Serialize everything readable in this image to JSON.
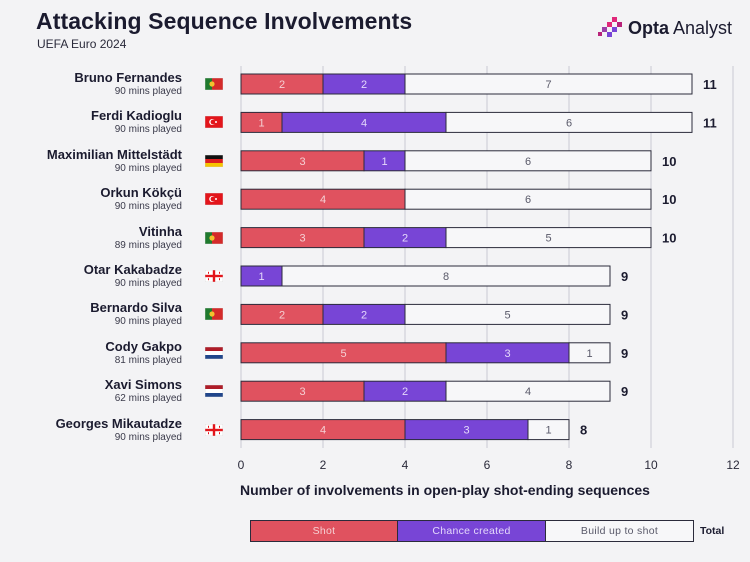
{
  "header": {
    "title": "Attacking Sequence Involvements",
    "subtitle": "UEFA Euro 2024",
    "brand_bold": "Opta",
    "brand_light": "Analyst"
  },
  "colors": {
    "shot": "#e0525f",
    "chance": "#7845d6",
    "buildup": "#f7f7f9",
    "text_on_bar": "#f5d0d4",
    "outline": "#2b2b3b",
    "grid": "#c9c9d2"
  },
  "legend": {
    "shot_label": "Shot",
    "chance_label": "Chance created",
    "buildup_label": "Build up to shot",
    "total_label": "Total"
  },
  "chart_data": {
    "type": "bar",
    "orientation": "horizontal",
    "stacked": true,
    "title": "Attacking Sequence Involvements",
    "xlabel": "Number of involvements in open-play shot-ending sequences",
    "xlim": [
      0,
      12
    ],
    "xticks": [
      0,
      2,
      4,
      6,
      8,
      10,
      12
    ],
    "categories": [
      "Bruno Fernandes",
      "Ferdi Kadioglu",
      "Maximilian Mittelstädt",
      "Orkun Kökçü",
      "Vitinha",
      "Otar Kakabadze",
      "Bernardo Silva",
      "Cody Gakpo",
      "Xavi Simons",
      "Georges Mikautadze"
    ],
    "minutes": [
      "90 mins played",
      "90 mins played",
      "90 mins played",
      "90 mins played",
      "89 mins played",
      "90 mins played",
      "90 mins played",
      "81 mins played",
      "62 mins played",
      "90 mins played"
    ],
    "nations": [
      "portugal",
      "turkey",
      "germany",
      "turkey",
      "portugal",
      "georgia",
      "portugal",
      "netherlands",
      "netherlands",
      "georgia"
    ],
    "series": [
      {
        "name": "Shot",
        "values": [
          2,
          1,
          3,
          4,
          3,
          0,
          2,
          5,
          3,
          4
        ]
      },
      {
        "name": "Chance created",
        "values": [
          2,
          4,
          1,
          0,
          2,
          1,
          2,
          3,
          2,
          3
        ]
      },
      {
        "name": "Build up to shot",
        "values": [
          7,
          6,
          6,
          6,
          5,
          8,
          5,
          1,
          4,
          1
        ]
      }
    ],
    "totals": [
      11,
      11,
      10,
      10,
      10,
      9,
      9,
      9,
      9,
      8
    ]
  }
}
